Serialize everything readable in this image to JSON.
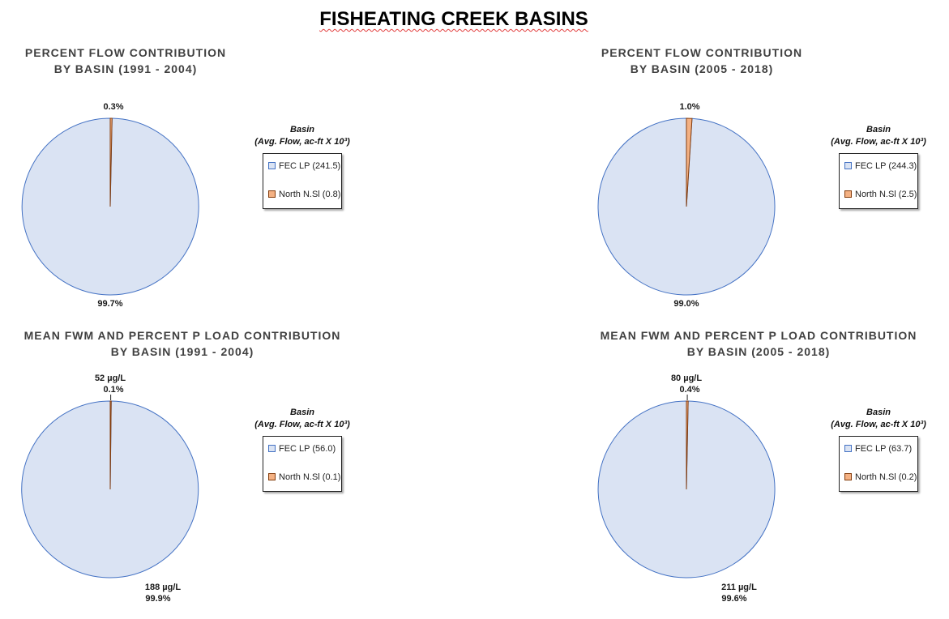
{
  "page": {
    "title": "FISHEATING CREEK BASINS"
  },
  "colors": {
    "fec_lp_fill": "#dae3f3",
    "fec_lp_stroke": "#4472c4",
    "north_fill": "#f4b183",
    "north_stroke": "#843c0c"
  },
  "chart_data": [
    {
      "type": "pie",
      "title_line1": "PERCENT FLOW CONTRIBUTION",
      "title_line2": "BY BASIN (1991 - 2004)",
      "legend_title_line1": "Basin",
      "legend_title_line2": "(Avg. Flow, ac-ft X 10³)",
      "legend_placement": "right",
      "slices": [
        {
          "name": "FEC LP",
          "legend": "FEC LP (241.5)",
          "value": 241.5,
          "percent_label": "99.7%",
          "fwm_label": ""
        },
        {
          "name": "North N.Sl",
          "legend": "North N.Sl (0.8)",
          "value": 0.8,
          "percent_label": "0.3%",
          "fwm_label": ""
        }
      ]
    },
    {
      "type": "pie",
      "title_line1": "PERCENT FLOW CONTRIBUTION",
      "title_line2": "BY BASIN (2005 - 2018)",
      "legend_title_line1": "Basin",
      "legend_title_line2": "(Avg. Flow, ac-ft X 10³)",
      "legend_placement": "right",
      "slices": [
        {
          "name": "FEC LP",
          "legend": "FEC LP (244.3)",
          "value": 244.3,
          "percent_label": "99.0%",
          "fwm_label": ""
        },
        {
          "name": "North N.Sl",
          "legend": "North N.Sl (2.5)",
          "value": 2.5,
          "percent_label": "1.0%",
          "fwm_label": ""
        }
      ]
    },
    {
      "type": "pie",
      "title_line1": "MEAN FWM AND PERCENT P LOAD CONTRIBUTION",
      "title_line2": "BY BASIN (1991 - 2004)",
      "legend_title_line1": "Basin",
      "legend_title_line2": "(Avg. Flow, ac-ft X 10³)",
      "legend_placement": "right",
      "slices": [
        {
          "name": "FEC LP",
          "legend": "FEC LP (56.0)",
          "value": 56.0,
          "percent_label": "99.9%",
          "fwm_label": "188  µg/L"
        },
        {
          "name": "North N.Sl",
          "legend": "North N.Sl (0.1)",
          "value": 0.1,
          "percent_label": "0.1%",
          "fwm_label": "52  µg/L"
        }
      ]
    },
    {
      "type": "pie",
      "title_line1": "MEAN FWM AND PERCENT P LOAD CONTRIBUTION",
      "title_line2": "BY BASIN (2005 - 2018)",
      "legend_title_line1": "Basin",
      "legend_title_line2": "(Avg. Flow, ac-ft X 10³)",
      "legend_placement": "right",
      "slices": [
        {
          "name": "FEC LP",
          "legend": "FEC LP (63.7)",
          "value": 63.7,
          "percent_label": "99.6%",
          "fwm_label": "211  µg/L"
        },
        {
          "name": "North N.Sl",
          "legend": "North N.Sl (0.2)",
          "value": 0.2,
          "percent_label": "0.4%",
          "fwm_label": "80  µg/L"
        }
      ]
    }
  ]
}
